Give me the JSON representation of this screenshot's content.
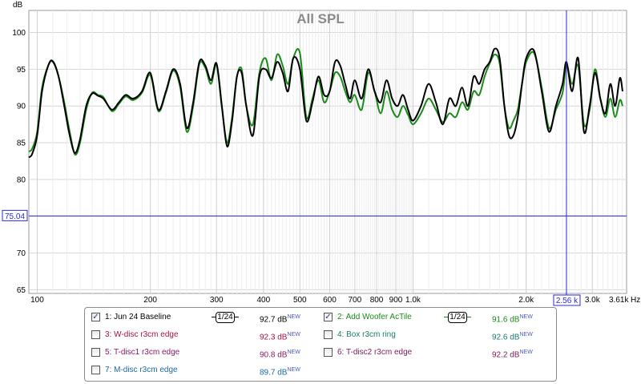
{
  "chart_data": {
    "type": "line",
    "title": "All SPL",
    "ylabel": "dB",
    "xlabel": "Hz",
    "x_scale": "log",
    "xlim": [
      95,
      3700
    ],
    "ylim": [
      64.5,
      103
    ],
    "grid": true,
    "y_ticks": [
      "65",
      "70",
      "75",
      "80",
      "85",
      "90",
      "95",
      "100"
    ],
    "y_tick_values": [
      65,
      70,
      75,
      80,
      85,
      90,
      95,
      100
    ],
    "x_ticks": [
      {
        "v": 100,
        "label": "100"
      },
      {
        "v": 200,
        "label": "200"
      },
      {
        "v": 300,
        "label": "300"
      },
      {
        "v": 400,
        "label": "400"
      },
      {
        "v": 500,
        "label": "500"
      },
      {
        "v": 600,
        "label": "600"
      },
      {
        "v": 700,
        "label": "700"
      },
      {
        "v": 800,
        "label": "800"
      },
      {
        "v": 900,
        "label": "900"
      },
      {
        "v": 1000,
        "label": "1.0k"
      },
      {
        "v": 2000,
        "label": "2.0k"
      },
      {
        "v": 3000,
        "label": "3.0k"
      }
    ],
    "x_end_label": "3.61k",
    "cursor": {
      "x": 2560,
      "x_label": "2.56 k",
      "y": 75.04,
      "y_label": "75.04",
      "color": "#2a2ad0"
    },
    "series": [
      {
        "name": "1: Jun 24 Baseline",
        "color": "#000000",
        "x": [
          95,
          97,
          100,
          103,
          107,
          110,
          114,
          118,
          122,
          126,
          130,
          135,
          140,
          145,
          150,
          158,
          165,
          172,
          180,
          190,
          200,
          210,
          220,
          230,
          240,
          250,
          260,
          270,
          280,
          290,
          300,
          310,
          320,
          330,
          340,
          350,
          360,
          375,
          390,
          405,
          420,
          435,
          450,
          465,
          480,
          500,
          520,
          540,
          560,
          580,
          600,
          620,
          640,
          660,
          680,
          700,
          730,
          760,
          790,
          820,
          850,
          880,
          910,
          940,
          970,
          1000,
          1050,
          1100,
          1150,
          1200,
          1250,
          1300,
          1350,
          1400,
          1450,
          1500,
          1550,
          1600,
          1650,
          1700,
          1750,
          1800,
          1850,
          1900,
          1950,
          2000,
          2100,
          2200,
          2300,
          2400,
          2500,
          2560,
          2650,
          2750,
          2850,
          2950,
          3050,
          3150,
          3250,
          3350,
          3450,
          3550,
          3610
        ],
        "y": [
          83,
          83.5,
          86,
          92,
          95.5,
          96.1,
          94,
          90,
          86,
          83.6,
          85.5,
          90,
          91.7,
          91.4,
          91,
          89.5,
          90.5,
          91.5,
          91,
          92,
          94.5,
          89.5,
          92,
          95,
          93,
          87,
          90.5,
          96,
          95.5,
          93.5,
          95.8,
          90,
          84.5,
          88,
          94,
          94.5,
          90,
          86,
          94,
          95,
          93.8,
          96,
          94.5,
          92,
          96.5,
          95,
          88,
          90.5,
          94,
          91.5,
          92,
          96,
          95.5,
          93,
          91,
          93.5,
          91,
          95,
          92,
          90.5,
          93.5,
          91,
          90,
          91.5,
          89.5,
          88,
          90,
          93,
          90.5,
          87.5,
          91,
          90,
          92.5,
          90,
          94,
          93,
          95,
          96,
          97.8,
          96.5,
          90,
          86,
          86,
          88.5,
          93,
          96.5,
          97.5,
          92,
          86.5,
          90,
          93,
          96,
          92,
          96.5,
          86.5,
          90,
          94.5,
          91,
          89,
          93,
          90,
          93.8,
          92
        ]
      },
      {
        "name": "2: Add Woofer AcTile",
        "color": "#1a8a1a",
        "x": [
          95,
          97,
          100,
          103,
          107,
          110,
          114,
          118,
          122,
          126,
          130,
          135,
          140,
          145,
          150,
          158,
          165,
          172,
          180,
          190,
          200,
          210,
          220,
          230,
          240,
          250,
          260,
          270,
          280,
          290,
          300,
          310,
          320,
          330,
          340,
          350,
          360,
          375,
          390,
          405,
          420,
          435,
          450,
          465,
          480,
          500,
          520,
          540,
          560,
          580,
          600,
          620,
          640,
          660,
          680,
          700,
          730,
          760,
          790,
          820,
          850,
          880,
          910,
          940,
          970,
          1000,
          1050,
          1100,
          1150,
          1200,
          1250,
          1300,
          1350,
          1400,
          1450,
          1500,
          1550,
          1600,
          1650,
          1700,
          1750,
          1800,
          1850,
          1900,
          1950,
          2000,
          2100,
          2200,
          2300,
          2400,
          2500,
          2560,
          2650,
          2750,
          2850,
          2950,
          3050,
          3150,
          3250,
          3350,
          3450,
          3550,
          3610
        ],
        "y": [
          83.8,
          84.2,
          86.5,
          92.5,
          95.5,
          96,
          94,
          90.5,
          86.5,
          83.4,
          85,
          89.5,
          91.8,
          91.5,
          91.2,
          89.3,
          90.3,
          91.3,
          90.8,
          91.8,
          94.2,
          89.3,
          91.8,
          94.8,
          92.6,
          86.5,
          90,
          95.7,
          95.2,
          93,
          95.6,
          89.8,
          85,
          88.5,
          94,
          95,
          90,
          87.5,
          94.5,
          96.5,
          93.5,
          97,
          95.5,
          93,
          96.5,
          97.2,
          88.5,
          91,
          93.5,
          90.5,
          92,
          94.5,
          94,
          92,
          90.5,
          91.5,
          89.5,
          94.5,
          92,
          89,
          92,
          89.5,
          88.5,
          90,
          88.8,
          87.5,
          89,
          91,
          89.5,
          87.8,
          89,
          88.5,
          90.5,
          89.5,
          92,
          91.5,
          94,
          95.8,
          97,
          95.8,
          90,
          87,
          88,
          89.5,
          93,
          96,
          97.2,
          92.5,
          87,
          89.5,
          91.8,
          95.5,
          93,
          95.5,
          87.5,
          89.5,
          95,
          91,
          88.5,
          91,
          88.5,
          90.8,
          90
        ]
      }
    ]
  },
  "legend": {
    "entries": [
      {
        "label": "1: Jun 24 Baseline",
        "value": "92.7 dB",
        "badge": "NEW",
        "checked": true,
        "check_mark": "✓",
        "color": "#000000",
        "smoothing": "1/24",
        "smoothing_color": "#000000"
      },
      {
        "label": "2: Add Woofer AcTile",
        "value": "91.6 dB",
        "badge": "NEW",
        "checked": true,
        "check_mark": "✓",
        "color": "#1a8a1a",
        "smoothing": "1/24",
        "smoothing_color": "#1a8a1a"
      },
      {
        "label": "3: W-disc r3cm edge",
        "value": "92.3 dB",
        "badge": "NEW",
        "checked": false,
        "color": "#a0134a"
      },
      {
        "label": "4: Box r3cm ring",
        "value": "92.6 dB",
        "badge": "NEW",
        "checked": false,
        "color": "#1a7a6a"
      },
      {
        "label": "5: T-disc1 r3cm edge",
        "value": "90.8 dB",
        "badge": "NEW",
        "checked": false,
        "color": "#8a1a6a"
      },
      {
        "label": "6: T-disc2 r3cm edge",
        "value": "92.2 dB",
        "badge": "NEW",
        "checked": false,
        "color": "#7a1a5a"
      },
      {
        "label": "7: M-disc r3cm edge",
        "value": "89.7 dB",
        "badge": "NEW",
        "checked": false,
        "color": "#1a6aa0"
      }
    ]
  }
}
